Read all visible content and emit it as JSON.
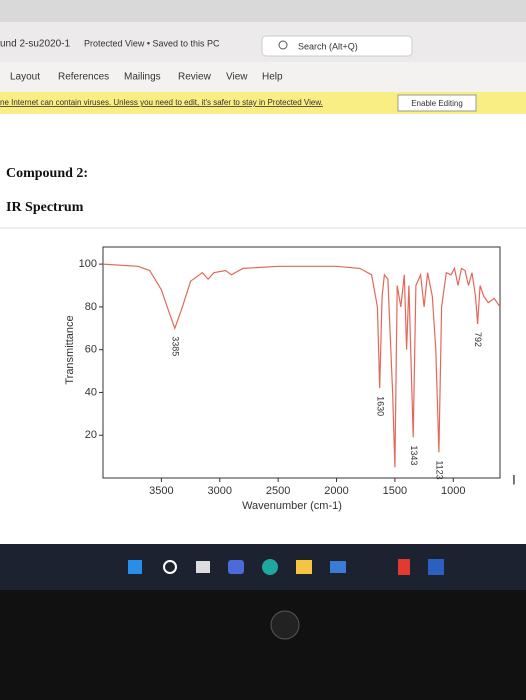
{
  "title_bar": {
    "document": "und 2-su2020-1",
    "status": "Protected View • Saved to this PC",
    "search": "Search (Alt+Q)"
  },
  "ribbon": {
    "tabs": [
      "Layout",
      "References",
      "Mailings",
      "Review",
      "View",
      "Help"
    ]
  },
  "banner": {
    "message": "ne Internet can contain viruses. Unless you need to edit, it's safer to stay in Protected View.",
    "button": "Enable Editing"
  },
  "document": {
    "heading": "Compound 2:",
    "subheading": "IR Spectrum"
  },
  "chart_data": {
    "type": "line",
    "x_label": "Wavenumber (cm-1)",
    "y_label": "Transmittance",
    "xlim": [
      4000,
      600
    ],
    "ylim": [
      0,
      108
    ],
    "xticks": [
      3500,
      3000,
      2500,
      2000,
      1500,
      1000
    ],
    "yticks": [
      20,
      40,
      60,
      80,
      100
    ],
    "x": [
      4000,
      3700,
      3600,
      3500,
      3450,
      3385,
      3320,
      3250,
      3150,
      3100,
      3050,
      2950,
      2900,
      2800,
      2500,
      2000,
      1800,
      1700,
      1650,
      1630,
      1610,
      1590,
      1560,
      1520,
      1500,
      1480,
      1450,
      1420,
      1400,
      1380,
      1343,
      1320,
      1280,
      1250,
      1220,
      1180,
      1150,
      1123,
      1100,
      1060,
      1020,
      990,
      960,
      930,
      900,
      870,
      840,
      810,
      792,
      770,
      740,
      700,
      650,
      600
    ],
    "series": [
      {
        "name": "IR",
        "color": "#e4685a",
        "values": [
          100,
          99,
          97,
          88,
          80,
          70,
          80,
          92,
          96,
          93,
          96,
          97,
          95,
          98,
          99,
          99,
          98,
          95,
          80,
          42,
          85,
          95,
          93,
          40,
          5,
          90,
          80,
          95,
          60,
          90,
          19,
          90,
          95,
          80,
          96,
          85,
          60,
          12,
          80,
          96,
          95,
          98,
          90,
          98,
          97,
          90,
          96,
          85,
          72,
          90,
          85,
          82,
          84,
          80
        ]
      }
    ],
    "annotations": [
      {
        "text": "3385",
        "x": 3385
      },
      {
        "text": "1630",
        "x": 1630
      },
      {
        "text": "1343",
        "x": 1343
      },
      {
        "text": "1123",
        "x": 1123
      },
      {
        "text": "792",
        "x": 792
      }
    ]
  }
}
